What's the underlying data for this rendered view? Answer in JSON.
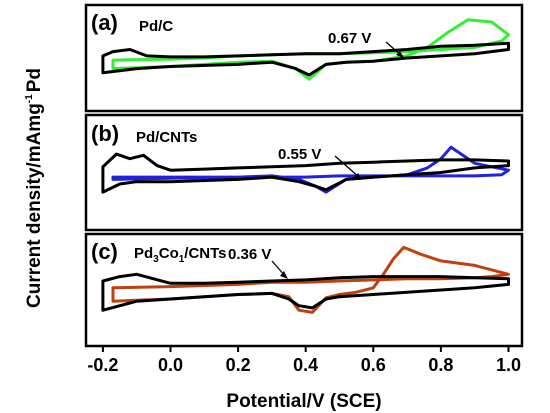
{
  "chart_data": {
    "type": "line",
    "xlabel": "Potential/V (SCE)",
    "ylabel": "Current density/mAmg",
    "ylabel_superscript": "-1",
    "ylabel_tail": "Pd",
    "xlim": [
      -0.25,
      1.04
    ],
    "xticks": [
      -0.2,
      0.0,
      0.2,
      0.4,
      0.6,
      0.8,
      1.0
    ],
    "xtick_labels": [
      "-0.2",
      "0.0",
      "0.2",
      "0.4",
      "0.6",
      "0.8",
      "1.0"
    ],
    "panels": [
      {
        "label": "(a)",
        "sample": "Pd/C",
        "sample_parts": [],
        "annotation": "0.67 V",
        "annotation_x": 0.67,
        "series": [
          {
            "color": "#33ee33",
            "x": [
              -0.17,
              0.0,
              0.2,
              0.3,
              0.37,
              0.41,
              0.46,
              0.52,
              0.6,
              0.7,
              0.76,
              0.82,
              0.88,
              0.95,
              1.0,
              0.98,
              0.9,
              0.8,
              0.7,
              0.6,
              0.5,
              0.4,
              0.3,
              0.2,
              0.1,
              0.0,
              -0.17,
              -0.17
            ],
            "y": [
              0.4,
              0.42,
              0.46,
              0.47,
              0.4,
              0.3,
              0.44,
              0.46,
              0.47,
              0.52,
              0.6,
              0.74,
              0.86,
              0.84,
              0.72,
              0.66,
              0.6,
              0.58,
              0.56,
              0.55,
              0.54,
              0.54,
              0.53,
              0.52,
              0.5,
              0.49,
              0.48,
              0.4
            ]
          },
          {
            "color": "#000000",
            "x": [
              -0.2,
              -0.1,
              0.0,
              0.2,
              0.3,
              0.37,
              0.41,
              0.46,
              0.52,
              0.6,
              0.7,
              0.8,
              0.9,
              1.0,
              1.0,
              0.9,
              0.8,
              0.7,
              0.6,
              0.5,
              0.4,
              0.3,
              0.2,
              0.1,
              0.0,
              -0.07,
              -0.12,
              -0.17,
              -0.2,
              -0.2
            ],
            "y": [
              0.36,
              0.4,
              0.42,
              0.44,
              0.46,
              0.4,
              0.34,
              0.44,
              0.46,
              0.47,
              0.5,
              0.52,
              0.54,
              0.58,
              0.64,
              0.62,
              0.61,
              0.58,
              0.56,
              0.54,
              0.54,
              0.53,
              0.52,
              0.51,
              0.51,
              0.52,
              0.58,
              0.56,
              0.52,
              0.36
            ]
          }
        ]
      },
      {
        "label": "(b)",
        "sample": "Pd/CNTs",
        "sample_parts": [],
        "annotation": "0.55 V",
        "annotation_x": 0.55,
        "series": [
          {
            "color": "#2222dd",
            "x": [
              -0.17,
              0.0,
              0.2,
              0.3,
              0.38,
              0.43,
              0.46,
              0.52,
              0.6,
              0.7,
              0.76,
              0.8,
              0.83,
              0.86,
              0.9,
              0.95,
              1.0,
              0.98,
              0.9,
              0.8,
              0.7,
              0.6,
              0.5,
              0.4,
              0.3,
              0.2,
              0.1,
              0.0,
              -0.17,
              -0.17
            ],
            "y": [
              0.44,
              0.45,
              0.46,
              0.47,
              0.44,
              0.38,
              0.33,
              0.44,
              0.46,
              0.48,
              0.54,
              0.62,
              0.72,
              0.66,
              0.58,
              0.55,
              0.52,
              0.48,
              0.47,
              0.47,
              0.47,
              0.47,
              0.47,
              0.46,
              0.46,
              0.46,
              0.46,
              0.46,
              0.46,
              0.44
            ]
          },
          {
            "color": "#000000",
            "x": [
              -0.2,
              -0.15,
              -0.1,
              0.0,
              0.2,
              0.3,
              0.38,
              0.43,
              0.46,
              0.52,
              0.6,
              0.7,
              0.8,
              0.9,
              1.0,
              1.0,
              0.9,
              0.8,
              0.7,
              0.6,
              0.5,
              0.4,
              0.3,
              0.2,
              0.1,
              0.0,
              -0.04,
              -0.08,
              -0.12,
              -0.16,
              -0.2,
              -0.2
            ],
            "y": [
              0.33,
              0.4,
              0.42,
              0.42,
              0.44,
              0.46,
              0.42,
              0.38,
              0.35,
              0.44,
              0.46,
              0.48,
              0.5,
              0.54,
              0.56,
              0.6,
              0.61,
              0.61,
              0.6,
              0.59,
              0.58,
              0.56,
              0.55,
              0.54,
              0.53,
              0.52,
              0.56,
              0.65,
              0.62,
              0.66,
              0.55,
              0.33
            ]
          }
        ]
      },
      {
        "label": "(c)",
        "sample": "Pd3Co1/CNTs",
        "sample_parts": [
          "Pd",
          "3",
          "Co",
          "1",
          "/CNTs"
        ],
        "annotation": "0.36 V",
        "annotation_x": 0.36,
        "series": [
          {
            "color": "#c04010",
            "x": [
              -0.17,
              0.0,
              0.1,
              0.2,
              0.3,
              0.35,
              0.38,
              0.42,
              0.46,
              0.5,
              0.55,
              0.6,
              0.63,
              0.66,
              0.69,
              0.74,
              0.8,
              0.9,
              1.0,
              0.95,
              0.9,
              0.8,
              0.7,
              0.6,
              0.5,
              0.4,
              0.3,
              0.2,
              0.1,
              0.0,
              -0.17,
              -0.17
            ],
            "y": [
              0.4,
              0.42,
              0.44,
              0.46,
              0.47,
              0.44,
              0.32,
              0.3,
              0.43,
              0.46,
              0.48,
              0.52,
              0.64,
              0.78,
              0.88,
              0.82,
              0.76,
              0.72,
              0.64,
              0.62,
              0.61,
              0.6,
              0.6,
              0.59,
              0.58,
              0.57,
              0.57,
              0.55,
              0.54,
              0.53,
              0.52,
              0.4
            ]
          },
          {
            "color": "#000000",
            "x": [
              -0.2,
              -0.1,
              0.0,
              0.1,
              0.2,
              0.3,
              0.35,
              0.38,
              0.42,
              0.46,
              0.5,
              0.6,
              0.7,
              0.8,
              0.9,
              1.0,
              1.0,
              0.9,
              0.8,
              0.7,
              0.6,
              0.5,
              0.4,
              0.3,
              0.2,
              0.1,
              0.0,
              -0.05,
              -0.1,
              -0.15,
              -0.2,
              -0.2
            ],
            "y": [
              0.32,
              0.4,
              0.42,
              0.44,
              0.46,
              0.47,
              0.42,
              0.36,
              0.34,
              0.42,
              0.44,
              0.46,
              0.48,
              0.5,
              0.52,
              0.55,
              0.6,
              0.61,
              0.62,
              0.62,
              0.62,
              0.61,
              0.59,
              0.58,
              0.57,
              0.56,
              0.56,
              0.6,
              0.64,
              0.62,
              0.58,
              0.32
            ]
          }
        ]
      }
    ]
  }
}
